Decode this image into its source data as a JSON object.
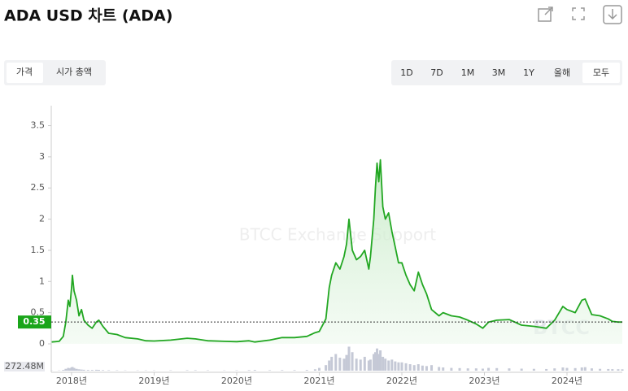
{
  "ui": {
    "title": "ADA USD 차트 (ADA)",
    "tabs": [
      "가격",
      "시가 총액"
    ],
    "ranges": [
      "1D",
      "7D",
      "1M",
      "3M",
      "1Y",
      "올해",
      "모두"
    ],
    "watermark": "BTCC Exchange Support",
    "logo": "BTCC"
  },
  "chart_data": {
    "type": "line",
    "color": "#22a722",
    "fill_color": "#e3f5e3",
    "x": [
      2017.76,
      2017.85,
      2017.9,
      2017.93,
      2017.96,
      2017.98,
      2018.0,
      2018.01,
      2018.03,
      2018.06,
      2018.09,
      2018.12,
      2018.15,
      2018.2,
      2018.25,
      2018.3,
      2018.33,
      2018.38,
      2018.45,
      2018.55,
      2018.65,
      2018.8,
      2018.9,
      2019.0,
      2019.2,
      2019.4,
      2019.5,
      2019.65,
      2019.85,
      2020.0,
      2020.15,
      2020.22,
      2020.4,
      2020.55,
      2020.7,
      2020.85,
      2020.95,
      2021.0,
      2021.08,
      2021.12,
      2021.15,
      2021.2,
      2021.25,
      2021.3,
      2021.33,
      2021.36,
      2021.4,
      2021.45,
      2021.5,
      2021.55,
      2021.6,
      2021.62,
      2021.66,
      2021.68,
      2021.7,
      2021.72,
      2021.74,
      2021.77,
      2021.8,
      2021.84,
      2021.88,
      2021.92,
      2021.96,
      2022.0,
      2022.05,
      2022.1,
      2022.15,
      2022.2,
      2022.25,
      2022.3,
      2022.36,
      2022.45,
      2022.5,
      2022.6,
      2022.7,
      2022.8,
      2022.9,
      2022.98,
      2023.05,
      2023.15,
      2023.3,
      2023.45,
      2023.6,
      2023.75,
      2023.85,
      2023.95,
      2024.0,
      2024.1,
      2024.18,
      2024.22,
      2024.3,
      2024.4,
      2024.5,
      2024.55,
      2024.62,
      2024.67
    ],
    "values": [
      0.03,
      0.04,
      0.12,
      0.35,
      0.7,
      0.6,
      0.9,
      1.1,
      0.85,
      0.7,
      0.45,
      0.55,
      0.38,
      0.3,
      0.25,
      0.35,
      0.38,
      0.28,
      0.17,
      0.15,
      0.1,
      0.08,
      0.05,
      0.045,
      0.06,
      0.09,
      0.08,
      0.05,
      0.04,
      0.035,
      0.05,
      0.03,
      0.06,
      0.1,
      0.1,
      0.12,
      0.18,
      0.2,
      0.4,
      0.9,
      1.1,
      1.3,
      1.2,
      1.4,
      1.6,
      2.0,
      1.5,
      1.35,
      1.4,
      1.5,
      1.2,
      1.4,
      2.0,
      2.5,
      2.9,
      2.6,
      2.95,
      2.2,
      2.0,
      2.1,
      1.8,
      1.55,
      1.3,
      1.3,
      1.1,
      0.95,
      0.85,
      1.15,
      0.95,
      0.8,
      0.55,
      0.45,
      0.5,
      0.45,
      0.43,
      0.38,
      0.32,
      0.25,
      0.35,
      0.38,
      0.39,
      0.3,
      0.28,
      0.25,
      0.38,
      0.6,
      0.55,
      0.5,
      0.7,
      0.72,
      0.47,
      0.45,
      0.4,
      0.36,
      0.35,
      0.35
    ],
    "volume": {
      "color": "#c5c9d6",
      "axis": "y2",
      "values": [
        2000000,
        3000000,
        8000000,
        20000000,
        30000000,
        25000000,
        35000000,
        40000000,
        30000000,
        20000000,
        15000000,
        12000000,
        10000000,
        8000000,
        8000000,
        10000000,
        9000000,
        6000000,
        5000000,
        4000000,
        3000000,
        3000000,
        3000000,
        3000000,
        4000000,
        5000000,
        5000000,
        4000000,
        3000000,
        4000000,
        6000000,
        8000000,
        5000000,
        6000000,
        6000000,
        8000000,
        15000000,
        30000000,
        60000000,
        110000000,
        150000000,
        180000000,
        140000000,
        130000000,
        170000000,
        260000000,
        200000000,
        130000000,
        120000000,
        150000000,
        110000000,
        120000000,
        180000000,
        200000000,
        240000000,
        180000000,
        220000000,
        150000000,
        130000000,
        110000000,
        120000000,
        100000000,
        90000000,
        90000000,
        80000000,
        70000000,
        60000000,
        70000000,
        55000000,
        50000000,
        60000000,
        40000000,
        35000000,
        30000000,
        28000000,
        25000000,
        25000000,
        22000000,
        30000000,
        28000000,
        25000000,
        22000000,
        20000000,
        18000000,
        25000000,
        35000000,
        30000000,
        28000000,
        35000000,
        38000000,
        25000000,
        20000000,
        18000000,
        17000000,
        16000000,
        15000000
      ]
    },
    "current_price": 0.35,
    "current_color": "#1aa51a",
    "xlim": [
      2017.754,
      2024.67
    ],
    "xticks": [
      {
        "value": 2018,
        "label": "2018년"
      },
      {
        "value": 2019,
        "label": "2019년"
      },
      {
        "value": 2020,
        "label": "2020년"
      },
      {
        "value": 2021,
        "label": "2021년"
      },
      {
        "value": 2022,
        "label": "2022년"
      },
      {
        "value": 2023,
        "label": "2023년"
      },
      {
        "value": 2024,
        "label": "2024년"
      }
    ],
    "ylim": [
      0,
      3.82
    ],
    "yticks": [
      0,
      0.5,
      1,
      1.5,
      2,
      2.5,
      3,
      3.5
    ],
    "y2lim": [
      0,
      272480000
    ],
    "y2ticks": [
      {
        "value": 272480000,
        "label": "272.48M"
      }
    ],
    "grid": false
  }
}
